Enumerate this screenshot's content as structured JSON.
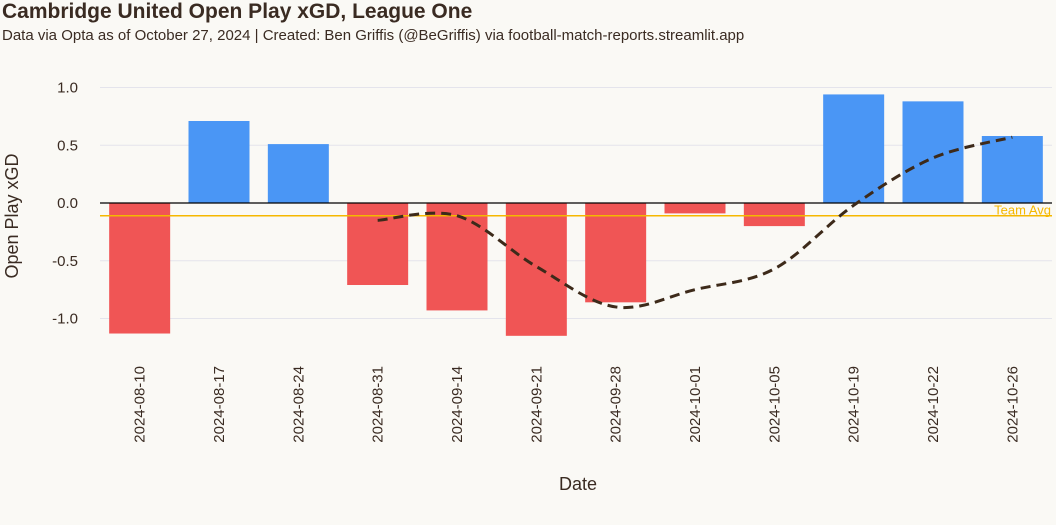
{
  "chart_data": {
    "type": "bar",
    "title": "Cambridge United Open Play xGD, League One",
    "subtitle": "Data via Opta as of October 27, 2024 | Created: Ben Griffis (@BeGriffis) via football-match-reports.streamlit.app",
    "xlabel": "Date",
    "ylabel": "Open Play xGD",
    "ylim": [
      -1.15,
      1.05
    ],
    "yticks": [
      1.0,
      0.5,
      0.0,
      -0.5,
      -1.0
    ],
    "ytick_labels": [
      "1.0",
      "0.5",
      "0.0",
      "-0.5",
      "-1.0"
    ],
    "grid": true,
    "categories": [
      "2024-08-10",
      "2024-08-17",
      "2024-08-24",
      "2024-08-31",
      "2024-09-14",
      "2024-09-21",
      "2024-09-28",
      "2024-10-01",
      "2024-10-05",
      "2024-10-19",
      "2024-10-22",
      "2024-10-26"
    ],
    "series": [
      {
        "values": [
          -1.13,
          0.71,
          0.51,
          -0.71,
          -0.93,
          -1.15,
          -0.86,
          -0.09,
          -0.2,
          0.94,
          0.88,
          0.58
        ]
      },
      {
        "type": "line",
        "style": "dashed",
        "values": [
          null,
          null,
          null,
          -0.15,
          -0.11,
          -0.55,
          -0.9,
          -0.75,
          -0.57,
          -0.02,
          0.39,
          0.57
        ]
      }
    ],
    "reference_line": {
      "label": "Team Avg",
      "value": -0.11
    },
    "colors": {
      "positive": "#4a96f5",
      "negative": "#f05555",
      "line": "#3d2a1a",
      "reference": "#f5b800",
      "grid": "#e4e4ec",
      "zero": "#000000",
      "text": "#3a2b22",
      "background": "#faf9f5"
    }
  }
}
